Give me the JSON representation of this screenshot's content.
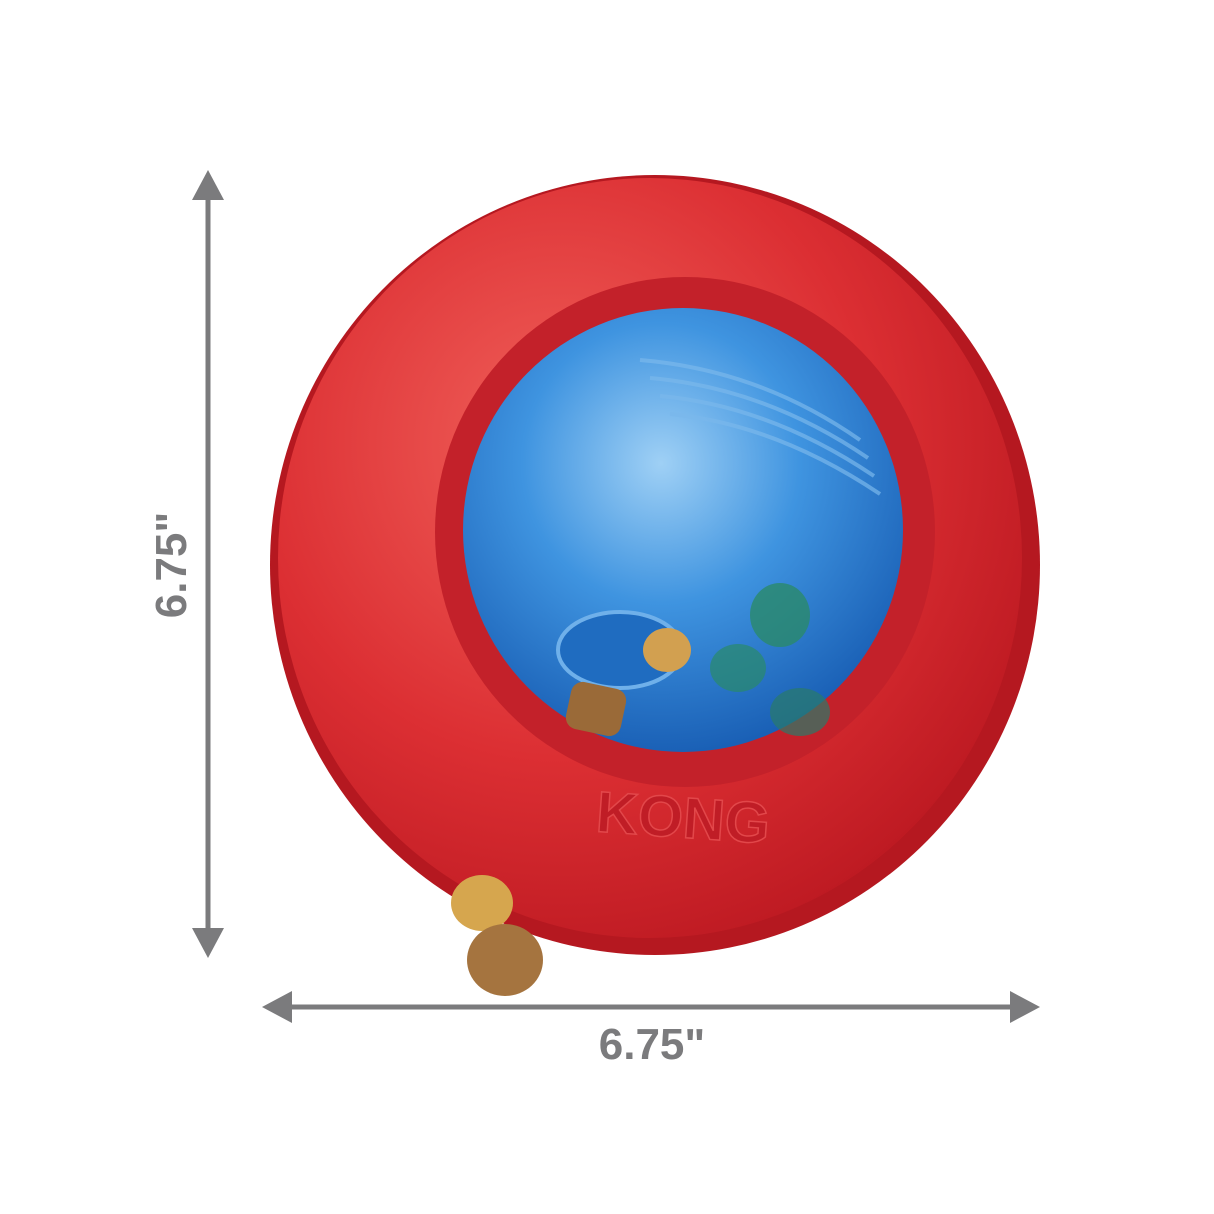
{
  "product": {
    "brand_logo": "KONG",
    "colors": {
      "ring": "#d42a2f",
      "ball": "#2f84d8",
      "kibble": "#c9954a",
      "dimension_lines": "#7b7b7d"
    }
  },
  "dimensions": {
    "height_label": "6.75\"",
    "width_label": "6.75\""
  }
}
